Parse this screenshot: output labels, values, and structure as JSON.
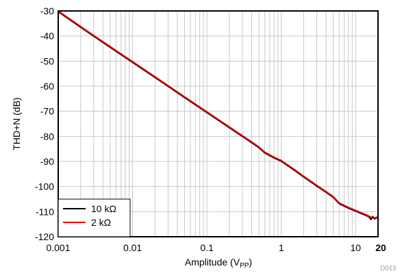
{
  "chart_data": {
    "type": "line",
    "figure_id": "D015",
    "xlabel_main": "Amplitude (V",
    "xlabel_sub": "PP",
    "xlabel_close": ")",
    "ylabel": "THD+N (dB)",
    "x_scale": "log",
    "xlim": [
      0.001,
      20
    ],
    "ylim": [
      -120,
      -30
    ],
    "grid": true,
    "legend_position": "bottom-left",
    "x_ticks": [
      {
        "value": 0.001,
        "label": "0.001",
        "bold": false
      },
      {
        "value": 0.01,
        "label": "0.01",
        "bold": false
      },
      {
        "value": 0.1,
        "label": "0.1",
        "bold": false
      },
      {
        "value": 1,
        "label": "1",
        "bold": false
      },
      {
        "value": 10,
        "label": "10",
        "bold": false
      },
      {
        "value": 20,
        "label": "20",
        "bold": true
      }
    ],
    "y_ticks": [
      {
        "value": -30,
        "label": "-30"
      },
      {
        "value": -40,
        "label": "-40"
      },
      {
        "value": -50,
        "label": "-50"
      },
      {
        "value": -60,
        "label": "-60"
      },
      {
        "value": -70,
        "label": "-70"
      },
      {
        "value": -80,
        "label": "-80"
      },
      {
        "value": -90,
        "label": "-90"
      },
      {
        "value": -100,
        "label": "-100"
      },
      {
        "value": -110,
        "label": "-110"
      },
      {
        "value": -120,
        "label": "-120"
      }
    ],
    "series": [
      {
        "name": "10 kΩ",
        "color": "#000000",
        "points": [
          [
            0.001,
            -30.3
          ],
          [
            0.002,
            -36.5
          ],
          [
            0.005,
            -44.5
          ],
          [
            0.01,
            -50.5
          ],
          [
            0.02,
            -56.5
          ],
          [
            0.05,
            -64.5
          ],
          [
            0.1,
            -70.5
          ],
          [
            0.2,
            -76.5
          ],
          [
            0.4,
            -82.5
          ],
          [
            0.5,
            -84.5
          ],
          [
            0.6,
            -86.6
          ],
          [
            0.8,
            -88.6
          ],
          [
            1,
            -89.9
          ],
          [
            1.5,
            -93.5
          ],
          [
            2,
            -96.2
          ],
          [
            3,
            -99.8
          ],
          [
            4,
            -102.3
          ],
          [
            5,
            -104.3
          ],
          [
            6,
            -106.8
          ],
          [
            8,
            -108.6
          ],
          [
            10,
            -109.8
          ],
          [
            12,
            -110.8
          ],
          [
            14,
            -111.6
          ],
          [
            15,
            -112.0
          ],
          [
            16,
            -113.1
          ],
          [
            17,
            -112.2
          ],
          [
            18,
            -112.9
          ],
          [
            19,
            -112.4
          ],
          [
            20,
            -112.6
          ]
        ]
      },
      {
        "name": "2 kΩ",
        "color": "#e8000b",
        "points": [
          [
            0.001,
            -30.0
          ],
          [
            0.002,
            -36.2
          ],
          [
            0.005,
            -44.2
          ],
          [
            0.01,
            -50.2
          ],
          [
            0.02,
            -56.2
          ],
          [
            0.05,
            -64.2
          ],
          [
            0.1,
            -70.2
          ],
          [
            0.2,
            -76.2
          ],
          [
            0.4,
            -82.2
          ],
          [
            0.5,
            -84.2
          ],
          [
            0.6,
            -86.3
          ],
          [
            0.8,
            -88.3
          ],
          [
            1,
            -89.6
          ],
          [
            1.5,
            -93.2
          ],
          [
            2,
            -95.9
          ],
          [
            3,
            -99.5
          ],
          [
            4,
            -102.0
          ],
          [
            5,
            -104.0
          ],
          [
            6,
            -106.5
          ],
          [
            8,
            -108.3
          ],
          [
            10,
            -109.5
          ],
          [
            12,
            -110.5
          ],
          [
            14,
            -111.3
          ],
          [
            15,
            -111.7
          ],
          [
            16,
            -112.3
          ],
          [
            17,
            -111.9
          ],
          [
            18,
            -112.6
          ],
          [
            19,
            -112.2
          ],
          [
            20,
            -112.3
          ]
        ]
      }
    ]
  }
}
